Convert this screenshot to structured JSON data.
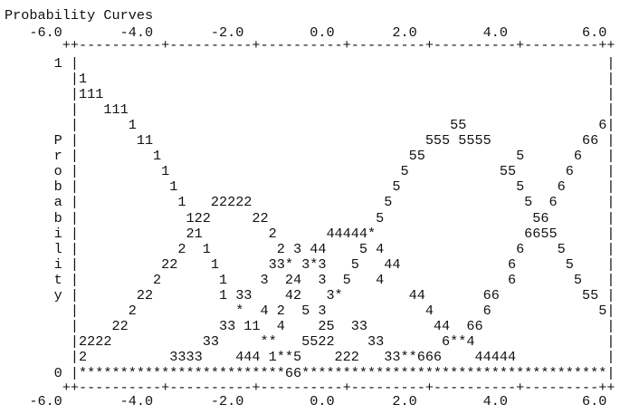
{
  "title": "Probability Curves",
  "x_axis_top": {
    "labels": "   -6.0       -4.0       -2.0        0.0       2.0        4.0         6.0",
    "rule": "       ++----------+----------+----------+---------+----------+---------++"
  },
  "plot_rows": [
    "      1 |                                                                |",
    "        |1                                                               |",
    "        |111                                                             |",
    "        |   111                                                          |",
    "        |      1                                      55                6|",
    "      P |       11                                 555 5555           66 |",
    "      r |         1                              55           5      6   |",
    "      o |          1                            5           55      6    |",
    "      b |           1                          5              5    6     |",
    "      a |            1   22222                5                5  6      |",
    "      b |             122     22             5                  56       |",
    "      i |             21        2      44444*                  6655      |",
    "      l |            2  1        2 3 44    5 4                6    5     |",
    "      i |          22    1      33* 3*3   5   44             6      5    |",
    "      t |         2       1    3  24  3  5   4               6       5   |",
    "      y |       22        1 33    42   3*        44       66          55 |",
    "        |      2            *  4 2  5 3            4      6             5|",
    "        |    22           33 11  4    25  33        44  66               |",
    "        |2222           33     **   5522    33       6**4                |",
    "        |2          3333    444 1**5    222   33**666    44444           |",
    "      0 |*************************66*************************************|"
  ],
  "x_axis_bottom": {
    "rule": "       ++----------+----------+----------+---------+----------+---------++",
    "labels": "   -6.0       -4.0       -2.0        0.0       2.0        4.0         6.0"
  }
}
